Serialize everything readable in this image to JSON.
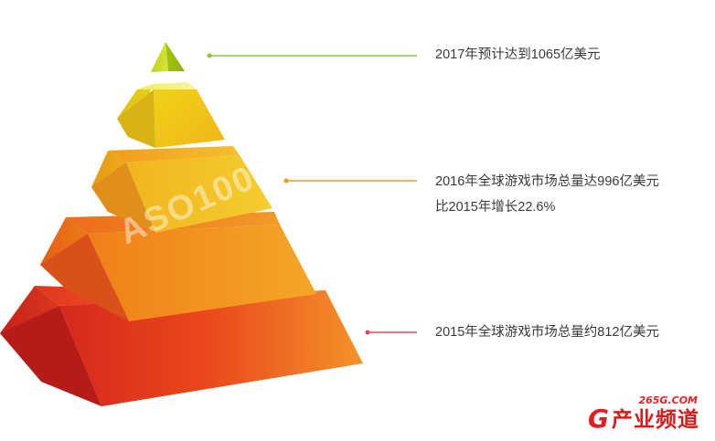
{
  "labels": {
    "top": "2017年预计达到1065亿美元",
    "middle_line1": "2016年全球游戏市场总量达996亿美元",
    "middle_line2": "比2015年增长22.6%",
    "bottom": "2015年全球游戏市场总量约812亿美元"
  },
  "watermark": "ASO100",
  "logo": {
    "url": "265G.COM",
    "letter": "G",
    "name": "产业频道"
  },
  "colors": {
    "top_line": "#8cc63f",
    "middle_line": "#f39a1e",
    "bottom_line": "#e8474a",
    "logo_red": "#e02020"
  }
}
